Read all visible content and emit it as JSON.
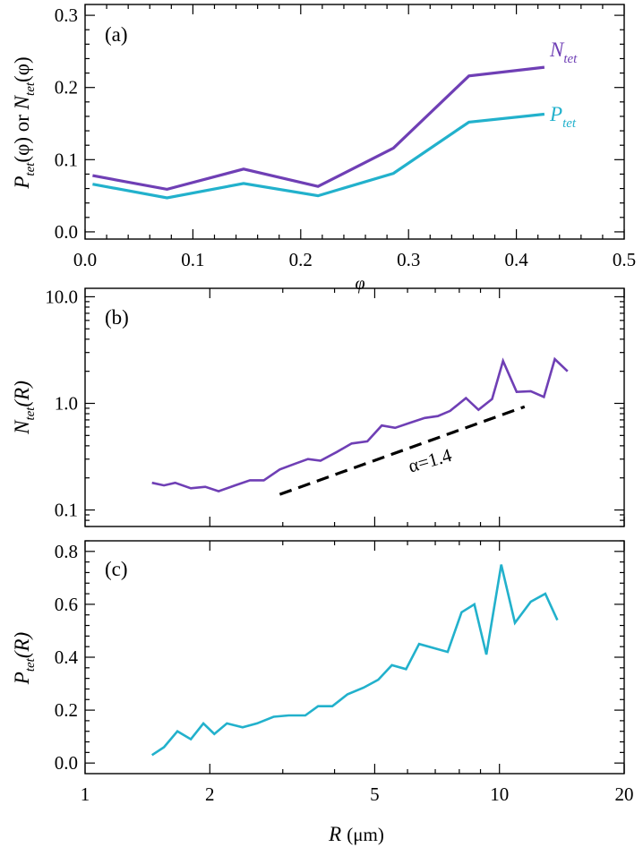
{
  "chart_data": [
    {
      "type": "line",
      "panel_label": "(a)",
      "xlabel": "φ",
      "ylabel": {
        "p": "P",
        "p_sub": "tet",
        "mid": "(φ) or ",
        "n": "N",
        "n_sub": "tet",
        "end": "(φ)"
      },
      "xlim": [
        0,
        0.5
      ],
      "ylim": [
        -0.01,
        0.315
      ],
      "xticks": [
        0.0,
        0.1,
        0.2,
        0.3,
        0.4,
        0.5
      ],
      "xtick_labels": [
        "0.0",
        "0.1",
        "0.2",
        "0.3",
        "0.4",
        "0.5"
      ],
      "yticks": [
        0.0,
        0.1,
        0.2,
        0.3
      ],
      "ytick_labels": [
        "0.0",
        "0.1",
        "0.2",
        "0.3"
      ],
      "series": [
        {
          "name": "N",
          "name_sub": "tet",
          "color": "#6f3fb5",
          "x": [
            0.007,
            0.076,
            0.147,
            0.216,
            0.286,
            0.356,
            0.426
          ],
          "y": [
            0.078,
            0.059,
            0.087,
            0.063,
            0.116,
            0.216,
            0.228
          ]
        },
        {
          "name": "P",
          "name_sub": "tet",
          "color": "#22b1cc",
          "x": [
            0.007,
            0.076,
            0.147,
            0.216,
            0.286,
            0.356,
            0.426
          ],
          "y": [
            0.066,
            0.047,
            0.067,
            0.05,
            0.081,
            0.152,
            0.163
          ]
        }
      ]
    },
    {
      "type": "line",
      "panel_label": "(b)",
      "xscale": "log",
      "yscale": "log",
      "ylabel": {
        "main": "N",
        "sub": "tet",
        "end": "(R)"
      },
      "xlim": [
        1,
        20
      ],
      "ylim": [
        0.07,
        12
      ],
      "yticks": [
        0.1,
        1.0,
        10.0
      ],
      "ytick_labels": [
        "0.1",
        "1.0",
        "10.0"
      ],
      "series": [
        {
          "color": "#6f3fb5",
          "x": [
            1.45,
            1.55,
            1.65,
            1.8,
            1.95,
            2.1,
            2.3,
            2.5,
            2.7,
            2.95,
            3.2,
            3.45,
            3.7,
            4.05,
            4.4,
            4.8,
            5.2,
            5.6,
            6.1,
            6.6,
            7.1,
            7.6,
            8.3,
            8.9,
            9.6,
            10.2,
            11.0,
            11.9,
            12.8,
            13.6,
            14.6
          ],
          "y": [
            0.18,
            0.17,
            0.18,
            0.16,
            0.165,
            0.15,
            0.17,
            0.19,
            0.19,
            0.24,
            0.27,
            0.3,
            0.29,
            0.35,
            0.42,
            0.44,
            0.62,
            0.59,
            0.66,
            0.73,
            0.76,
            0.85,
            1.12,
            0.87,
            1.1,
            2.5,
            1.28,
            1.3,
            1.15,
            2.6,
            2.0
          ]
        }
      ],
      "fit_line": {
        "x": [
          2.95,
          11.5
        ],
        "y": [
          0.14,
          0.93
        ],
        "color": "#000000",
        "label": "α=1.4"
      }
    },
    {
      "type": "line",
      "panel_label": "(c)",
      "xscale": "log",
      "xlabel": {
        "main": "R",
        "unit": "(μm)"
      },
      "ylabel": {
        "main": "P",
        "sub": "tet",
        "end": "(R)"
      },
      "xlim": [
        1,
        20
      ],
      "ylim": [
        -0.04,
        0.84
      ],
      "xticks": [
        1,
        2,
        5,
        10,
        20
      ],
      "xtick_labels": [
        "1",
        "2",
        "5",
        "10",
        "20"
      ],
      "yticks": [
        0.0,
        0.2,
        0.4,
        0.6,
        0.8
      ],
      "ytick_labels": [
        "0.0",
        "0.2",
        "0.4",
        "0.6",
        "0.8"
      ],
      "series": [
        {
          "color": "#22b1cc",
          "x": [
            1.45,
            1.55,
            1.67,
            1.8,
            1.93,
            2.05,
            2.2,
            2.4,
            2.6,
            2.85,
            3.1,
            3.4,
            3.65,
            3.95,
            4.3,
            4.7,
            5.1,
            5.5,
            5.95,
            6.4,
            7.5,
            8.1,
            8.7,
            9.3,
            10.1,
            10.9,
            11.9,
            12.9,
            13.8
          ],
          "y": [
            0.03,
            0.06,
            0.12,
            0.09,
            0.15,
            0.11,
            0.15,
            0.135,
            0.15,
            0.175,
            0.18,
            0.18,
            0.215,
            0.215,
            0.26,
            0.285,
            0.315,
            0.37,
            0.355,
            0.45,
            0.42,
            0.57,
            0.6,
            0.41,
            0.75,
            0.53,
            0.61,
            0.64,
            0.54
          ]
        }
      ]
    }
  ]
}
